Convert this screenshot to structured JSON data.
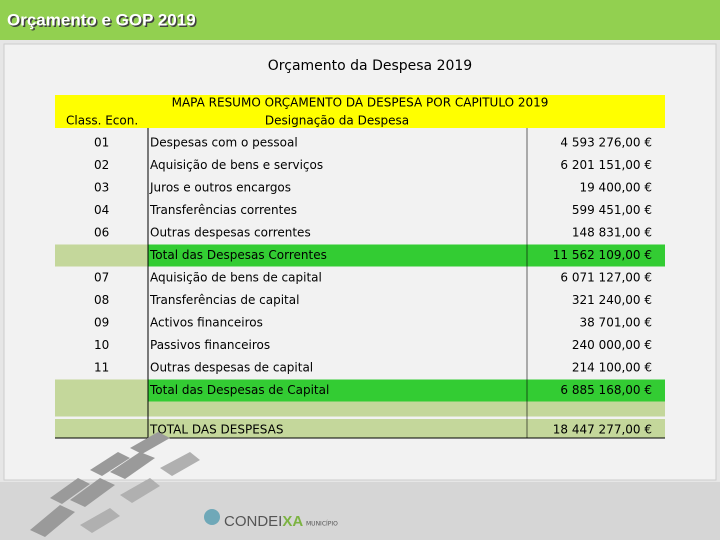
{
  "header": {
    "title": "Orçamento e GOP 2019"
  },
  "slide_title": "Orçamento da Despesa 2019",
  "table": {
    "caption": "MAPA RESUMO ORÇAMENTO DA DESPESA POR CAPITULO 2019",
    "columns": [
      "Class. Econ.",
      "Designação da Despesa"
    ],
    "subtotal_color": "#33cc33",
    "grand_total_color": "#c4d79b",
    "rows": [
      {
        "code": "01",
        "label": "Despesas com o pessoal",
        "amount": "4 593 276,00 €"
      },
      {
        "code": "02",
        "label": "Aquisição de bens e serviços",
        "amount": "6 201 151,00 €"
      },
      {
        "code": "03",
        "label": "Juros e outros encargos",
        "amount": "19 400,00 €"
      },
      {
        "code": "04",
        "label": "Transferências correntes",
        "amount": "599 451,00 €"
      },
      {
        "code": "06",
        "label": "Outras despesas correntes",
        "amount": "148 831,00 €"
      },
      {
        "label": "Total das Despesas Correntes",
        "amount": "11 562 109,00 €",
        "total": "subtotal"
      },
      {
        "code": "07",
        "label": "Aquisição de bens de capital",
        "amount": "6 071 127,00 €"
      },
      {
        "code": "08",
        "label": "Transferências de capital",
        "amount": "321 240,00 €"
      },
      {
        "code": "09",
        "label": "Activos financeiros",
        "amount": "38 701,00 €"
      },
      {
        "code": "10",
        "label": "Passivos financeiros",
        "amount": "240 000,00 €"
      },
      {
        "code": "11",
        "label": "Outras despesas de capital",
        "amount": "214 100,00 €"
      },
      {
        "label": "Total das Despesas de Capital",
        "amount": "6 885 168,00 €",
        "total": "subtotal"
      },
      {
        "label": "TOTAL DAS DESPESAS",
        "amount": "18 447 277,00 €",
        "total": "grand"
      }
    ]
  },
  "logo": {
    "parts": [
      "CONDEI",
      "XA"
    ],
    "sub": "MUNICÍPIO"
  }
}
